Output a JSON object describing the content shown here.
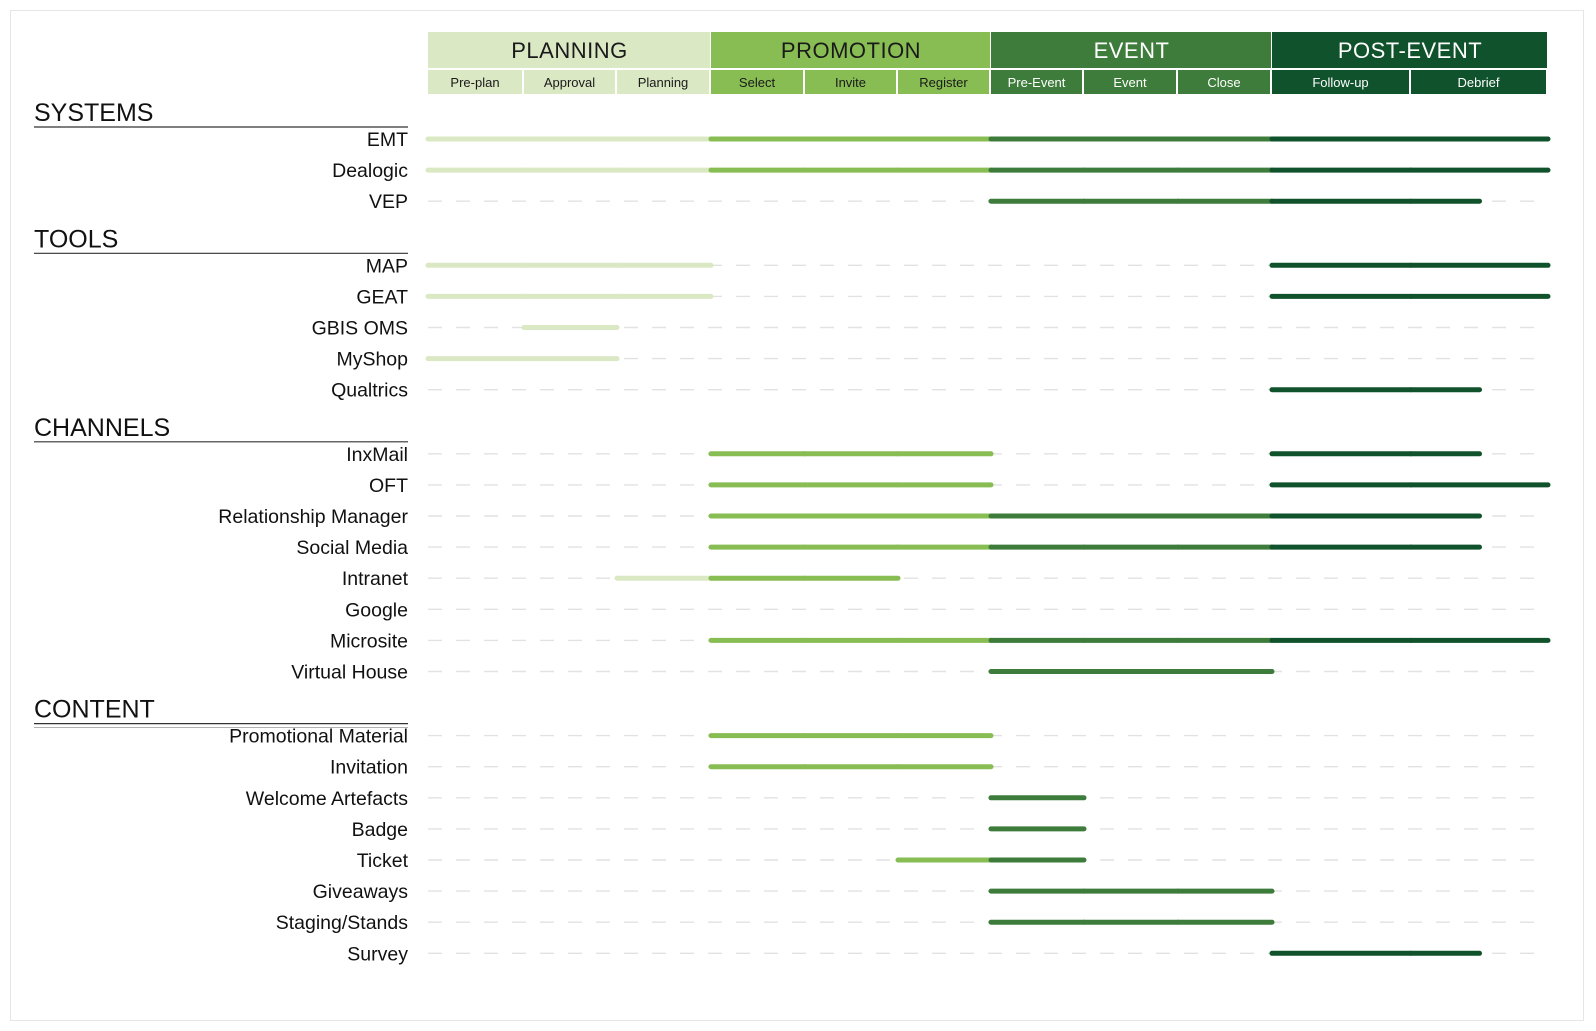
{
  "colors": {
    "planning": "#dae8c4",
    "promotion": "#88bd53",
    "event": "#3e7c3b",
    "post_event": "#10522c",
    "planning_text": "#1a1a1a",
    "promotion_text": "#1a1a1a",
    "event_text": "#ffffff",
    "post_event_text": "#ffffff",
    "dash": "#e2e2e2",
    "rule": "#333333"
  },
  "phases": [
    {
      "id": "planning",
      "label": "PLANNING",
      "steps": [
        "Pre-plan",
        "Approval",
        "Planning"
      ]
    },
    {
      "id": "promotion",
      "label": "PROMOTION",
      "steps": [
        "Select",
        "Invite",
        "Register"
      ]
    },
    {
      "id": "event",
      "label": "EVENT",
      "steps": [
        "Pre-Event",
        "Event",
        "Close"
      ]
    },
    {
      "id": "post_event",
      "label": "POST-EVENT",
      "steps": [
        "Follow-up",
        "Debrief"
      ]
    }
  ],
  "sections": [
    {
      "title": "SYSTEMS",
      "rows": [
        {
          "label": "EMT",
          "from": 0,
          "to": 11
        },
        {
          "label": "Dealogic",
          "from": 0,
          "to": 11
        },
        {
          "label": "VEP",
          "from": 6,
          "to": 10.5
        }
      ]
    },
    {
      "title": "TOOLS",
      "rows": [
        {
          "label": "MAP",
          "segments": [
            [
              0,
              3
            ],
            [
              9,
              11
            ]
          ]
        },
        {
          "label": "GEAT",
          "segments": [
            [
              0,
              3
            ],
            [
              9,
              11
            ]
          ]
        },
        {
          "label": "GBIS OMS",
          "from": 1,
          "to": 2
        },
        {
          "label": "MyShop",
          "from": 0,
          "to": 2
        },
        {
          "label": "Qualtrics",
          "from": 9,
          "to": 10.5
        }
      ]
    },
    {
      "title": "CHANNELS",
      "rows": [
        {
          "label": "InxMail",
          "segments": [
            [
              3,
              6
            ],
            [
              9,
              10.5
            ]
          ]
        },
        {
          "label": "OFT",
          "segments": [
            [
              3,
              6
            ],
            [
              9,
              11
            ]
          ]
        },
        {
          "label": "Relationship Manager",
          "from": 3,
          "to": 10.5
        },
        {
          "label": "Social Media",
          "from": 3,
          "to": 10.5
        },
        {
          "label": "Intranet",
          "from": 2,
          "to": 5
        },
        {
          "label": "Google",
          "segments": []
        },
        {
          "label": "Microsite",
          "from": 3,
          "to": 11
        },
        {
          "label": "Virtual House",
          "from": 6,
          "to": 9
        }
      ]
    },
    {
      "title": "CONTENT",
      "rows": [
        {
          "label": "Promotional Material",
          "from": 3,
          "to": 6
        },
        {
          "label": "Invitation",
          "from": 3,
          "to": 6
        },
        {
          "label": "Welcome Artefacts",
          "from": 6,
          "to": 7
        },
        {
          "label": "Badge",
          "from": 6,
          "to": 7
        },
        {
          "label": "Ticket",
          "from": 5,
          "to": 7
        },
        {
          "label": "Giveaways",
          "from": 6,
          "to": 9
        },
        {
          "label": "Staging/Stands",
          "from": 6,
          "to": 9
        },
        {
          "label": "Survey",
          "from": 9,
          "to": 10.5
        }
      ]
    }
  ]
}
